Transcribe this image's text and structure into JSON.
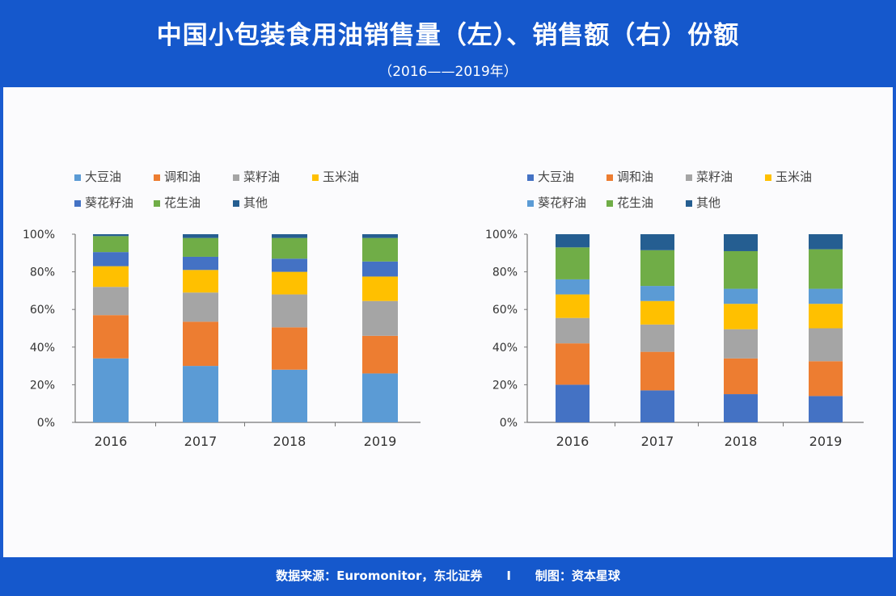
{
  "header": {
    "title": "中国小包装食用油销售量（左）、销售额（右）份额",
    "subtitle": "（2016——2019年）"
  },
  "footer": {
    "text": "数据来源：Euromonitor，东北证券　　I　　制图：资本星球"
  },
  "chart_data": [
    {
      "type": "bar",
      "stacked": true,
      "categories": [
        "2016",
        "2017",
        "2018",
        "2019"
      ],
      "ylim": [
        0,
        100
      ],
      "yticks": [
        "0%",
        "20%",
        "40%",
        "60%",
        "80%",
        "100%"
      ],
      "legend_position": "top",
      "series": [
        {
          "name": "大豆油",
          "color": "#5b9bd5",
          "values": [
            34,
            30,
            28,
            26
          ]
        },
        {
          "name": "调和油",
          "color": "#ed7d31",
          "values": [
            23,
            23.5,
            22.5,
            20
          ]
        },
        {
          "name": "菜籽油",
          "color": "#a5a5a5",
          "values": [
            15,
            15.5,
            17.5,
            18.5
          ]
        },
        {
          "name": "玉米油",
          "color": "#ffc000",
          "values": [
            11,
            12,
            12,
            13
          ]
        },
        {
          "name": "葵花籽油",
          "color": "#4472c4",
          "values": [
            7.5,
            7,
            7,
            8
          ]
        },
        {
          "name": "花生油",
          "color": "#70ad47",
          "values": [
            8.5,
            10,
            11,
            12.5
          ]
        },
        {
          "name": "其他",
          "color": "#255e91",
          "values": [
            1,
            2,
            2,
            2
          ]
        }
      ]
    },
    {
      "type": "bar",
      "stacked": true,
      "categories": [
        "2016",
        "2017",
        "2018",
        "2019"
      ],
      "ylim": [
        0,
        100
      ],
      "yticks": [
        "0%",
        "20%",
        "40%",
        "60%",
        "80%",
        "100%"
      ],
      "legend_position": "top",
      "series": [
        {
          "name": "大豆油",
          "color": "#4472c4",
          "values": [
            20,
            17,
            15,
            14
          ]
        },
        {
          "name": "调和油",
          "color": "#ed7d31",
          "values": [
            22,
            20.5,
            19,
            18.5
          ]
        },
        {
          "name": "菜籽油",
          "color": "#a5a5a5",
          "values": [
            13.5,
            14.5,
            15.5,
            17.5
          ]
        },
        {
          "name": "玉米油",
          "color": "#ffc000",
          "values": [
            12.5,
            12.5,
            13.5,
            13
          ]
        },
        {
          "name": "葵花籽油",
          "color": "#5b9bd5",
          "values": [
            8,
            8,
            8,
            8
          ]
        },
        {
          "name": "花生油",
          "color": "#70ad47",
          "values": [
            17,
            19,
            20,
            21
          ]
        },
        {
          "name": "其他",
          "color": "#255e91",
          "values": [
            7,
            8.5,
            9,
            8
          ]
        }
      ]
    }
  ]
}
